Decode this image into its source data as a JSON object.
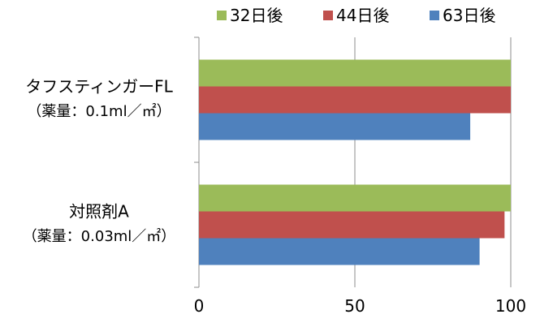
{
  "chart_data": {
    "type": "bar",
    "orientation": "horizontal",
    "categories": [
      [
        "タフスティンガーFL",
        "（薬量：0.1ml／㎡）"
      ],
      [
        "対照剤A",
        "（薬量：0.03ml／㎡）"
      ]
    ],
    "series": [
      {
        "name": "32日後",
        "color": "#9BBB59",
        "values": [
          100,
          100
        ]
      },
      {
        "name": "44日後",
        "color": "#C0504D",
        "values": [
          100,
          98
        ]
      },
      {
        "name": "63日後",
        "color": "#4F81BD",
        "values": [
          87,
          90
        ]
      }
    ],
    "xlim": [
      0,
      100
    ],
    "xticks": [
      0,
      50,
      100
    ],
    "grid": true,
    "legend": "top-right",
    "title": "",
    "xlabel": "",
    "ylabel": ""
  }
}
